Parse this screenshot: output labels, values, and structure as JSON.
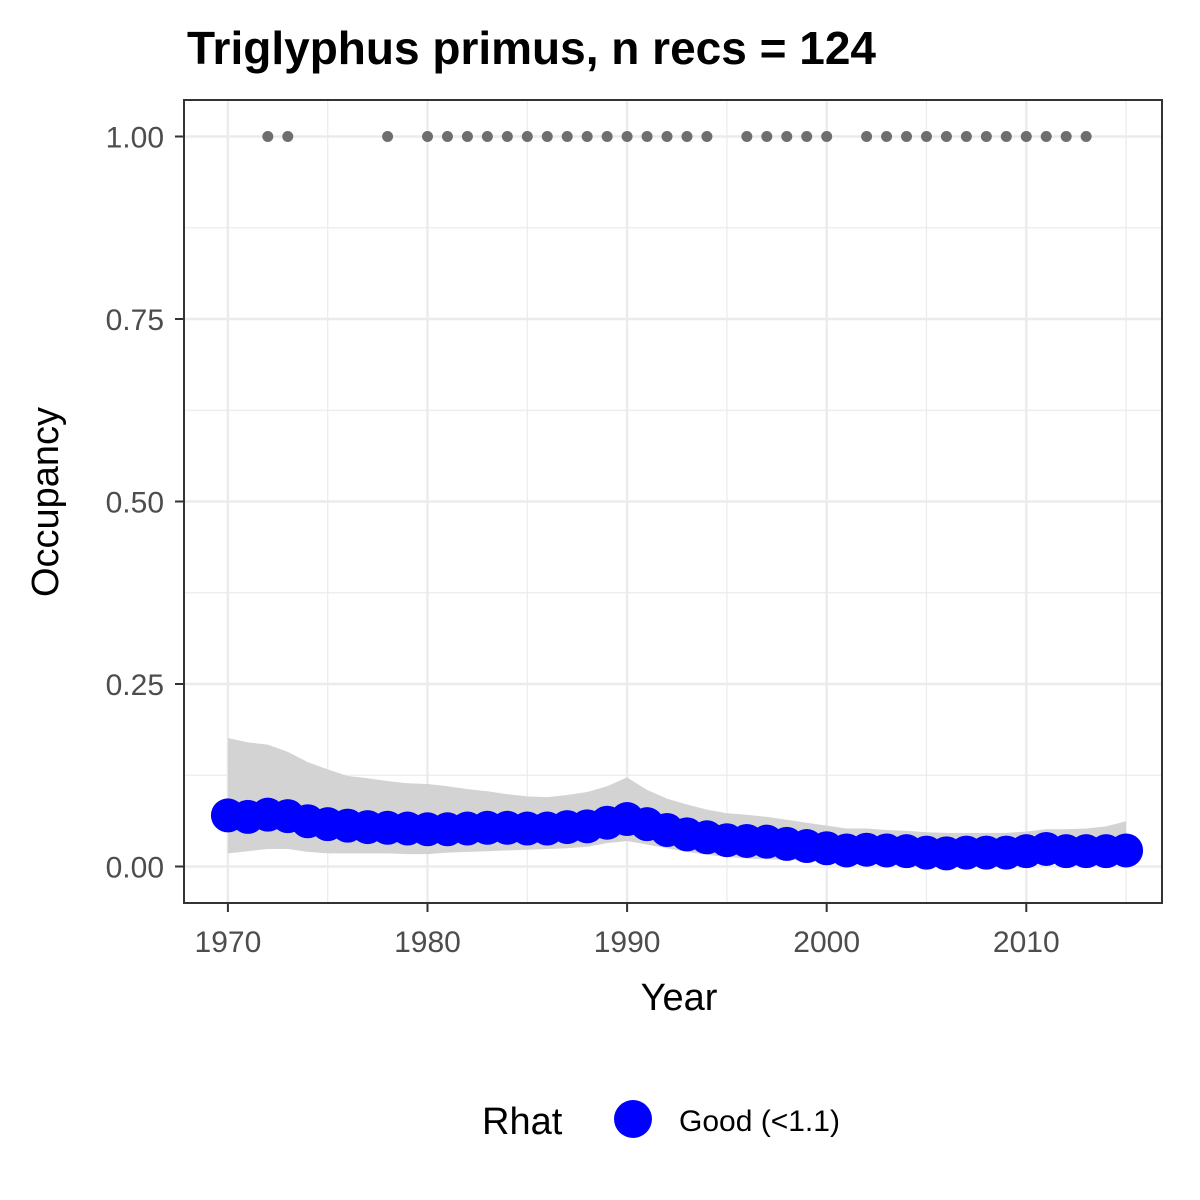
{
  "chart_data": {
    "type": "line",
    "title": "Triglyphus primus, n recs = 124",
    "xlabel": "Year",
    "ylabel": "Occupancy",
    "xlim": [
      1967.8,
      2016.8
    ],
    "ylim": [
      -0.05,
      1.05
    ],
    "x_ticks": [
      1970,
      1980,
      1990,
      2000,
      2010
    ],
    "x_tick_labels": [
      "1970",
      "1980",
      "1990",
      "2000",
      "2010"
    ],
    "y_ticks": [
      0,
      0.25,
      0.5,
      0.75,
      1
    ],
    "y_tick_labels": [
      "0.00",
      "0.25",
      "0.50",
      "0.75",
      "1.00"
    ],
    "grid": true,
    "legend": {
      "title": "Rhat",
      "position": "bottom",
      "entries": [
        {
          "label": "Good (<1.1)",
          "color": "#0000ff"
        }
      ]
    },
    "colors": {
      "series": "#0000ff",
      "ribbon": "#d3d3d3",
      "records": "#6e6e6e",
      "grid": "#ebebeb",
      "panel_border": "#333333"
    },
    "series": [
      {
        "rhat": "Good (<1.1)",
        "x": [
          1970,
          1971,
          1972,
          1973,
          1974,
          1975,
          1976,
          1977,
          1978,
          1979,
          1980,
          1981,
          1982,
          1983,
          1984,
          1985,
          1986,
          1987,
          1988,
          1989,
          1990,
          1991,
          1992,
          1993,
          1994,
          1995,
          1996,
          1997,
          1998,
          1999,
          2000,
          2001,
          2002,
          2003,
          2004,
          2005,
          2006,
          2007,
          2008,
          2009,
          2010,
          2011,
          2012,
          2013,
          2014,
          2015
        ],
        "y": [
          0.07,
          0.068,
          0.071,
          0.069,
          0.062,
          0.058,
          0.056,
          0.054,
          0.053,
          0.052,
          0.051,
          0.051,
          0.052,
          0.053,
          0.053,
          0.052,
          0.052,
          0.054,
          0.055,
          0.06,
          0.065,
          0.058,
          0.05,
          0.044,
          0.04,
          0.036,
          0.035,
          0.034,
          0.031,
          0.028,
          0.025,
          0.022,
          0.023,
          0.022,
          0.021,
          0.019,
          0.018,
          0.019,
          0.019,
          0.019,
          0.021,
          0.024,
          0.021,
          0.021,
          0.021,
          0.022
        ],
        "lower": [
          0.018,
          0.021,
          0.024,
          0.024,
          0.02,
          0.018,
          0.018,
          0.018,
          0.018,
          0.017,
          0.017,
          0.019,
          0.02,
          0.021,
          0.022,
          0.023,
          0.024,
          0.025,
          0.027,
          0.032,
          0.035,
          0.03,
          0.025,
          0.02,
          0.016,
          0.013,
          0.011,
          0.01,
          0.009,
          0.008,
          0.006,
          0.005,
          0.006,
          0.005,
          0.005,
          0.004,
          0.004,
          0.004,
          0.004,
          0.004,
          0.005,
          0.006,
          0.006,
          0.006,
          0.006,
          0.006
        ],
        "upper": [
          0.176,
          0.17,
          0.167,
          0.157,
          0.143,
          0.133,
          0.124,
          0.121,
          0.117,
          0.114,
          0.113,
          0.11,
          0.106,
          0.103,
          0.099,
          0.096,
          0.095,
          0.098,
          0.102,
          0.11,
          0.122,
          0.105,
          0.093,
          0.085,
          0.078,
          0.073,
          0.071,
          0.068,
          0.064,
          0.06,
          0.056,
          0.052,
          0.052,
          0.05,
          0.049,
          0.047,
          0.046,
          0.046,
          0.046,
          0.046,
          0.048,
          0.051,
          0.051,
          0.052,
          0.055,
          0.062
        ]
      }
    ],
    "records": {
      "y": 1,
      "x": [
        1972,
        1973,
        1978,
        1980,
        1981,
        1982,
        1983,
        1984,
        1985,
        1986,
        1987,
        1988,
        1989,
        1990,
        1991,
        1992,
        1993,
        1994,
        1996,
        1997,
        1998,
        1999,
        2000,
        2002,
        2003,
        2004,
        2005,
        2006,
        2007,
        2008,
        2009,
        2010,
        2011,
        2012,
        2013
      ]
    }
  }
}
